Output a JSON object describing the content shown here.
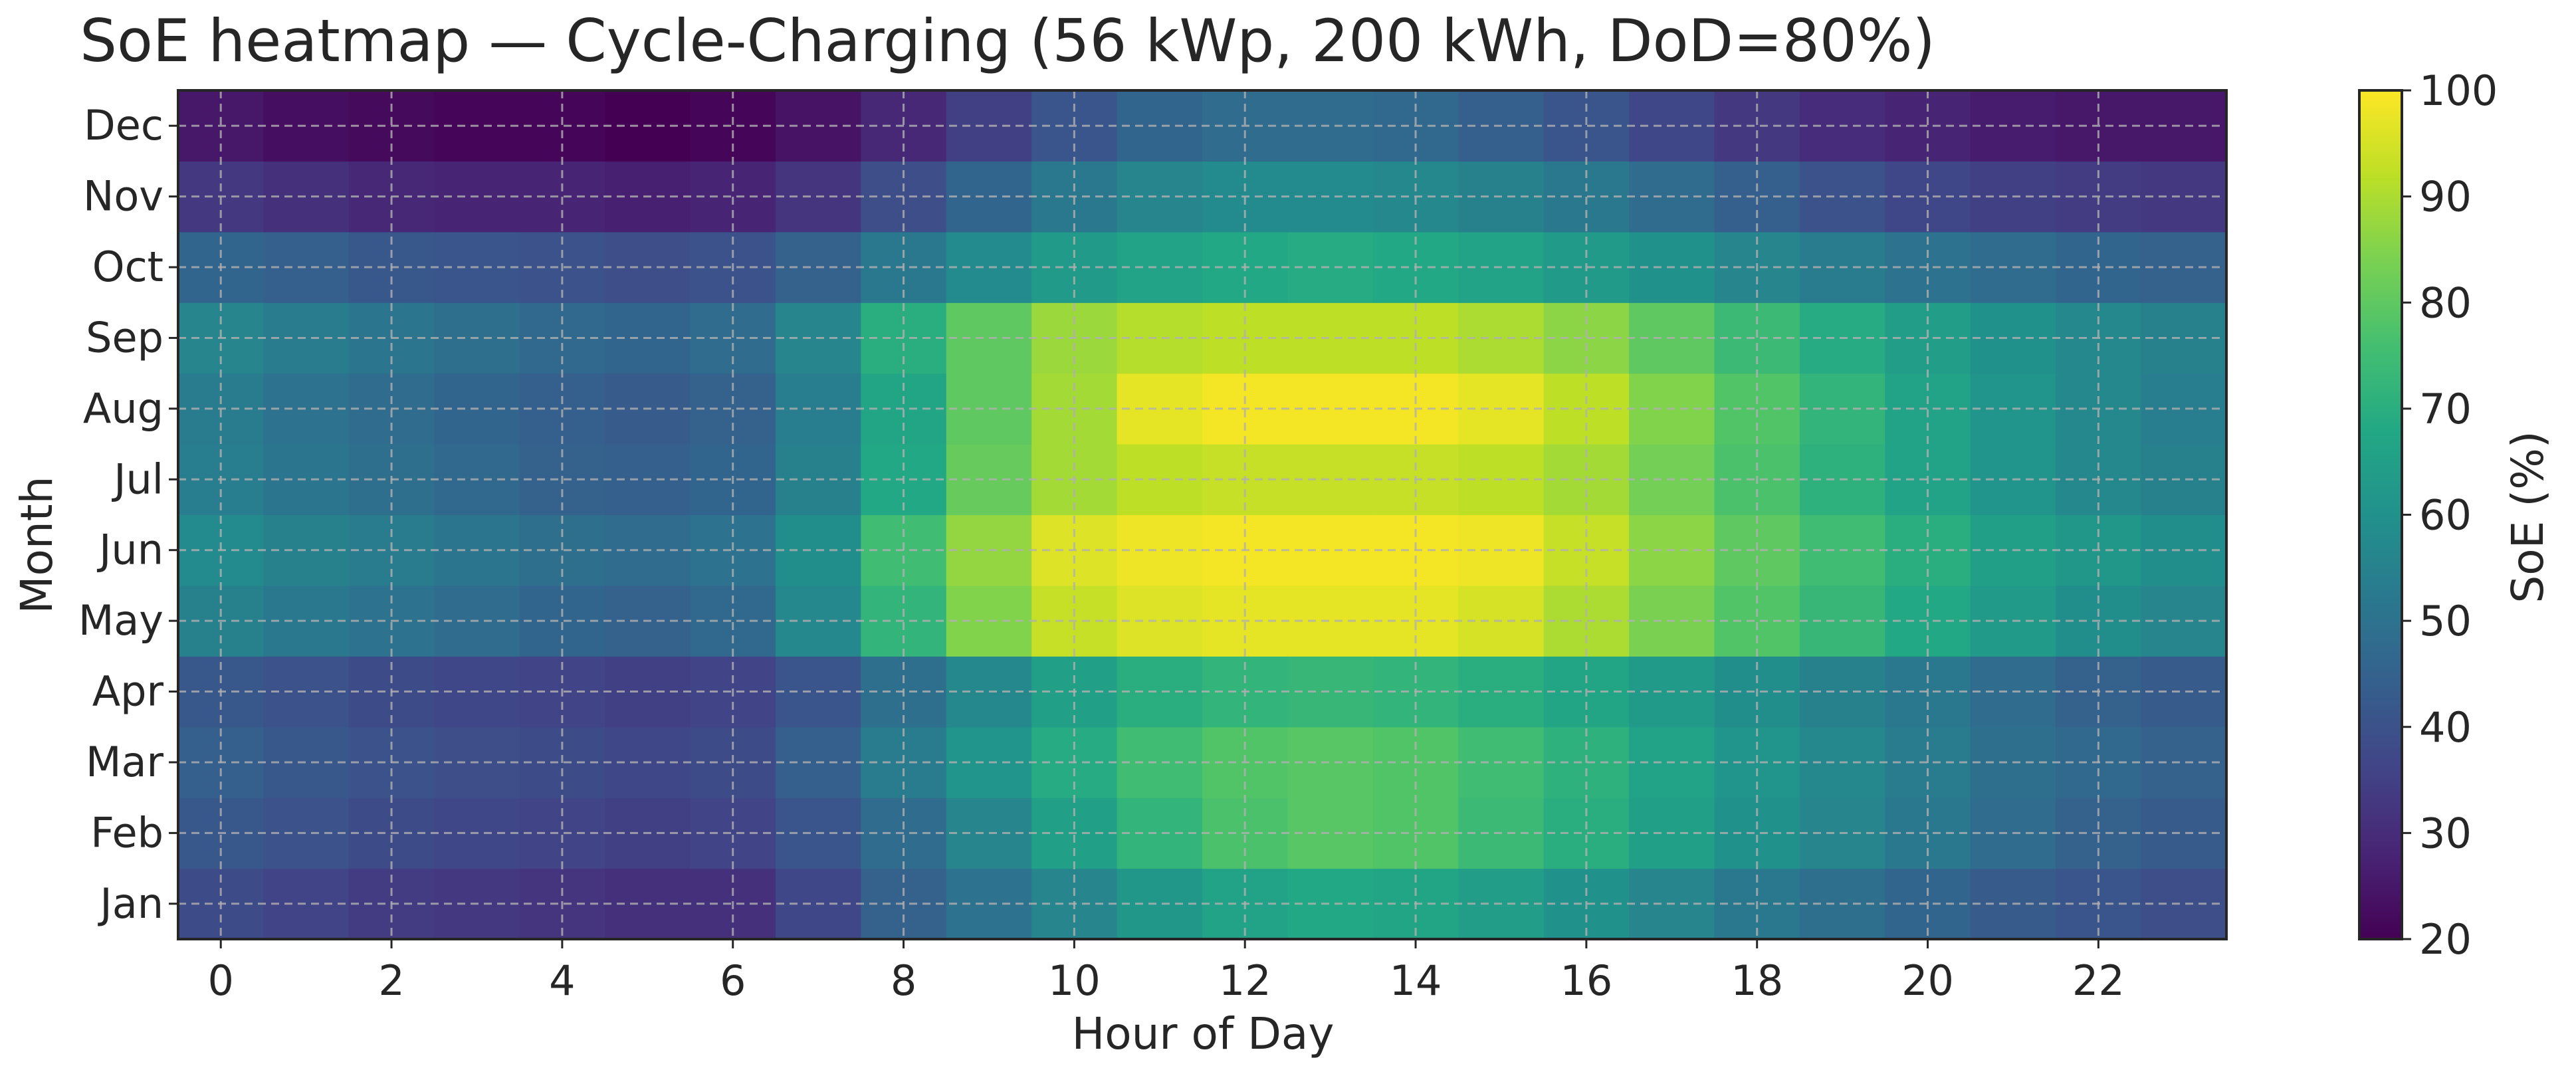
{
  "chart_data": {
    "type": "heatmap",
    "title": "SoE heatmap — Cycle-Charging (56 kWp, 200 kWh, DoD=80%)",
    "xlabel": "Hour of Day",
    "ylabel": "Month",
    "colorbar_label": "SoE (%)",
    "colormap": "viridis",
    "zlim": [
      20,
      100
    ],
    "colorbar_ticks": [
      20,
      30,
      40,
      50,
      60,
      70,
      80,
      90,
      100
    ],
    "x_ticks": [
      0,
      2,
      4,
      6,
      8,
      10,
      12,
      14,
      16,
      18,
      20,
      22
    ],
    "hours": [
      0,
      1,
      2,
      3,
      4,
      5,
      6,
      7,
      8,
      9,
      10,
      11,
      12,
      13,
      14,
      15,
      16,
      17,
      18,
      19,
      20,
      21,
      22,
      23
    ],
    "months": [
      "Jan",
      "Feb",
      "Mar",
      "Apr",
      "May",
      "Jun",
      "Jul",
      "Aug",
      "Sep",
      "Oct",
      "Nov",
      "Dec"
    ],
    "grid": true,
    "values": [
      [
        38,
        36,
        34,
        33,
        32,
        31,
        31,
        37,
        45,
        50,
        56,
        62,
        66,
        68,
        67,
        64,
        60,
        56,
        52,
        49,
        46,
        43,
        41,
        39
      ],
      [
        42,
        40,
        38,
        37,
        36,
        35,
        36,
        41,
        48,
        56,
        65,
        72,
        77,
        79,
        78,
        74,
        70,
        65,
        60,
        56,
        52,
        48,
        45,
        43
      ],
      [
        44,
        42,
        40,
        39,
        38,
        37,
        38,
        44,
        53,
        61,
        69,
        75,
        78,
        79,
        78,
        75,
        71,
        66,
        61,
        57,
        53,
        49,
        47,
        45
      ],
      [
        42,
        40,
        38,
        37,
        36,
        35,
        36,
        41,
        49,
        57,
        65,
        70,
        72,
        73,
        72,
        70,
        67,
        63,
        59,
        55,
        52,
        48,
        45,
        43
      ],
      [
        55,
        52,
        50,
        48,
        46,
        45,
        47,
        57,
        72,
        85,
        93,
        96,
        97,
        97,
        97,
        95,
        90,
        84,
        78,
        73,
        68,
        63,
        59,
        56
      ],
      [
        58,
        55,
        53,
        51,
        49,
        48,
        50,
        59,
        75,
        87,
        96,
        98,
        99,
        99,
        99,
        98,
        93,
        86,
        80,
        75,
        70,
        65,
        62,
        59
      ],
      [
        54,
        51,
        49,
        47,
        45,
        44,
        46,
        55,
        68,
        81,
        89,
        92,
        93,
        93,
        93,
        92,
        89,
        83,
        77,
        71,
        66,
        61,
        57,
        55
      ],
      [
        53,
        50,
        48,
        46,
        44,
        43,
        45,
        54,
        67,
        80,
        89,
        97,
        99,
        99,
        99,
        97,
        92,
        85,
        78,
        72,
        66,
        61,
        57,
        54
      ],
      [
        56,
        53,
        51,
        49,
        47,
        46,
        48,
        56,
        70,
        80,
        88,
        91,
        92,
        92,
        92,
        90,
        86,
        80,
        74,
        69,
        64,
        60,
        57,
        55
      ],
      [
        46,
        44,
        42,
        41,
        40,
        39,
        40,
        45,
        52,
        58,
        63,
        66,
        68,
        69,
        68,
        66,
        63,
        60,
        56,
        53,
        50,
        48,
        46,
        45
      ],
      [
        33,
        31,
        29,
        28,
        28,
        27,
        28,
        32,
        39,
        46,
        52,
        56,
        58,
        58,
        57,
        55,
        52,
        48,
        44,
        40,
        37,
        35,
        34,
        33
      ],
      [
        25,
        23,
        22,
        21,
        21,
        20,
        21,
        24,
        29,
        35,
        41,
        46,
        48,
        48,
        47,
        44,
        41,
        37,
        33,
        30,
        28,
        26,
        25,
        25
      ]
    ]
  }
}
